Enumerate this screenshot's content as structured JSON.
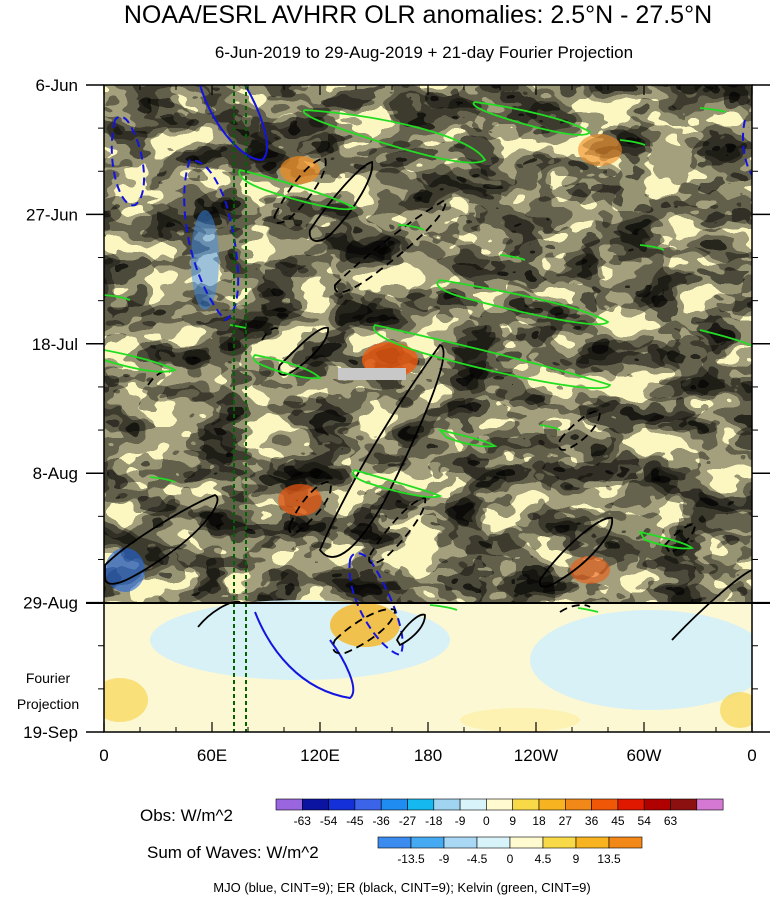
{
  "chart_data": {
    "type": "heatmap",
    "title": "NOAA/ESRL AVHRR OLR anomalies: 2.5°N - 27.5°N",
    "subtitle": "6-Jun-2019 to 29-Aug-2019 + 21-day Fourier Projection",
    "x_ticks": [
      "0",
      "60E",
      "120E",
      "180",
      "120W",
      "60W",
      "0"
    ],
    "y_ticks": [
      "6-Jun",
      "27-Jun",
      "18-Jul",
      "8-Aug",
      "29-Aug",
      "19-Sep"
    ],
    "projection_label_line1": "Fourier",
    "projection_label_line2": "Projection",
    "obs_legend": {
      "label": "Obs: W/m^2",
      "levels": [
        "-63",
        "-54",
        "-45",
        "-36",
        "-27",
        "-18",
        "-9",
        "0",
        "9",
        "18",
        "27",
        "36",
        "45",
        "54",
        "63"
      ],
      "colors": [
        "#9a66e0",
        "#0a14a0",
        "#1430d8",
        "#3c64e8",
        "#1e8cf0",
        "#16b8f0",
        "#a0d4f0",
        "#d8f4fa",
        "#fffad0",
        "#f8da48",
        "#f8b420",
        "#f28818",
        "#f05808",
        "#e01800",
        "#b00000",
        "#8c1010",
        "#d478d4"
      ]
    },
    "waves_legend": {
      "label": "Sum of Waves: W/m^2",
      "levels": [
        "-13.5",
        "-9",
        "-4.5",
        "0",
        "4.5",
        "9",
        "13.5"
      ],
      "colors": [
        "#3c8cf0",
        "#46aaf2",
        "#a8d8f4",
        "#d8f4fa",
        "#fffad0",
        "#f8da48",
        "#f8b420",
        "#f28818"
      ]
    },
    "note": "MJO (blue, CINT=9); ER (black, CINT=9); Kelvin (green, CINT=9)",
    "series_colors": {
      "mjo": "#1414e0",
      "er": "#000000",
      "kelvin": "#22dd22",
      "reference": "#006400"
    }
  }
}
